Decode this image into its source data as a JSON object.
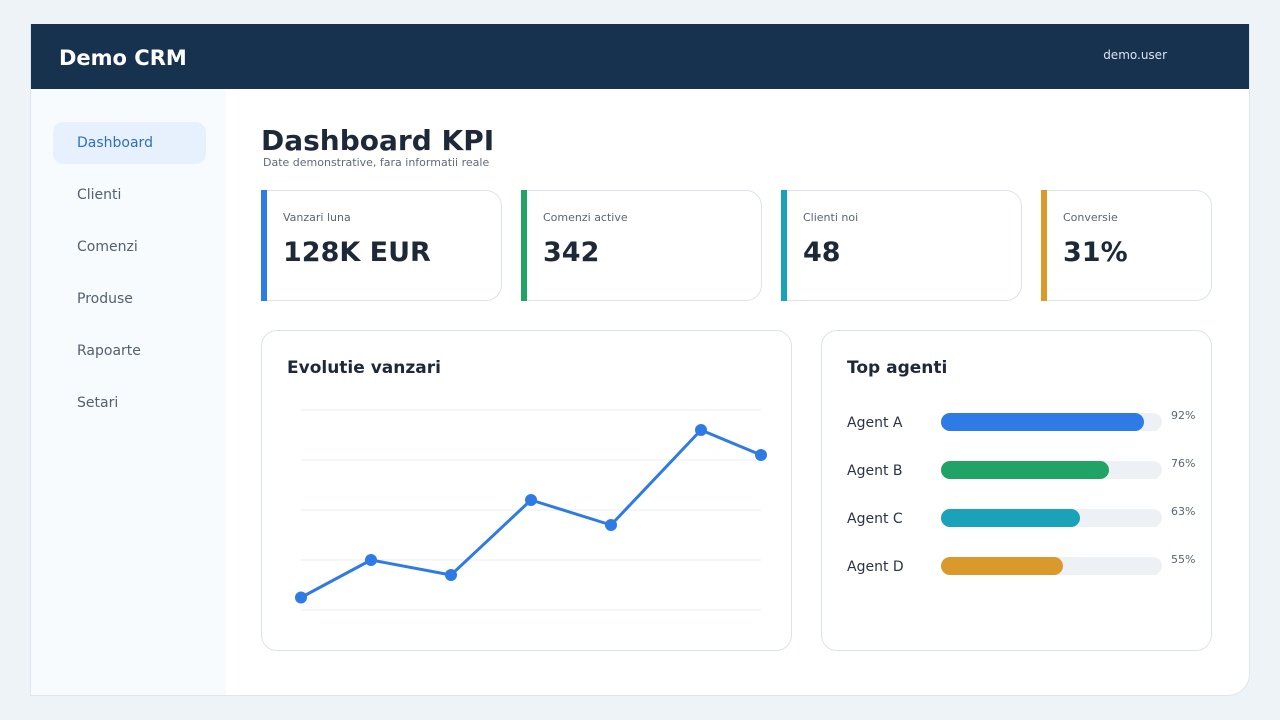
{
  "header": {
    "brand": "Demo CRM",
    "user": "demo.user"
  },
  "sidebar": {
    "items": [
      {
        "label": "Dashboard",
        "active": true
      },
      {
        "label": "Clienti"
      },
      {
        "label": "Comenzi"
      },
      {
        "label": "Produse"
      },
      {
        "label": "Rapoarte"
      },
      {
        "label": "Setari"
      }
    ]
  },
  "page": {
    "title": "Dashboard KPI",
    "subtitle": "Date demonstrative, fara informatii reale"
  },
  "kpis": [
    {
      "label": "Vanzari luna",
      "value": "128K EUR",
      "color": "#2f7be6"
    },
    {
      "label": "Comenzi active",
      "value": "342",
      "color": "#21a366"
    },
    {
      "label": "Clienti noi",
      "value": "48",
      "color": "#1aa3b8"
    },
    {
      "label": "Conversie",
      "value": "31%",
      "color": "#d99a2b"
    }
  ],
  "sales_card": {
    "title": "Evolutie vanzari"
  },
  "chart_data": {
    "type": "line",
    "title": "Evolutie vanzari",
    "x": [
      1,
      2,
      3,
      4,
      5,
      6,
      7
    ],
    "series": [
      {
        "values": [
          0.5,
          2.0,
          1.4,
          4.4,
          3.4,
          7.2,
          6.2
        ],
        "color": "#2f7be6"
      }
    ],
    "ylim": [
      0,
      8
    ],
    "grid": true,
    "gridlines": 5
  },
  "agents_card": {
    "title": "Top agenti",
    "agents": [
      {
        "name": "Agent A",
        "percent": 92,
        "percent_label": "92%",
        "color": "#2f7be6"
      },
      {
        "name": "Agent B",
        "percent": 76,
        "percent_label": "76%",
        "color": "#21a366"
      },
      {
        "name": "Agent C",
        "percent": 63,
        "percent_label": "63%",
        "color": "#1aa3b8"
      },
      {
        "name": "Agent D",
        "percent": 55,
        "percent_label": "55%",
        "color": "#d99a2b"
      }
    ]
  }
}
